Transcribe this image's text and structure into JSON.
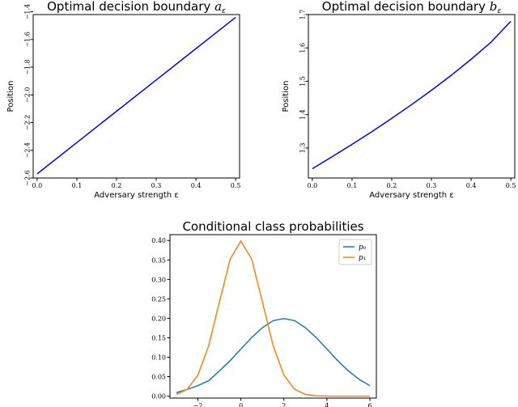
{
  "chart_data": [
    {
      "type": "line",
      "title": "Optimal decision boundary a_ε",
      "title_text": "Optimal decision boundary ",
      "title_symbol": "a",
      "title_sub": "ε",
      "xlabel": "Adversary strength ε",
      "ylabel": "Position",
      "xlim": [
        -0.01,
        0.51
      ],
      "ylim": [
        -2.6,
        -1.42
      ],
      "xticks": [
        0.0,
        0.1,
        0.2,
        0.3,
        0.4,
        0.5
      ],
      "xtick_labels": [
        "0.0",
        "0.1",
        "0.2",
        "0.3",
        "0.4",
        "0.5"
      ],
      "yticks": [
        -2.6,
        -2.4,
        -2.2,
        -2.0,
        -1.8,
        -1.6,
        -1.4
      ],
      "ytick_labels": [
        "−2.6",
        "−2.4",
        "−2.2",
        "−2.0",
        "−1.8",
        "−1.6",
        "−1.4"
      ],
      "grid": false,
      "series": [
        {
          "color": "#0000ff",
          "x": [
            0.0,
            0.1,
            0.2,
            0.3,
            0.4,
            0.5
          ],
          "y": [
            -2.57,
            -2.344,
            -2.118,
            -1.892,
            -1.666,
            -1.44
          ]
        }
      ]
    },
    {
      "type": "line",
      "title": "Optimal decision boundary b_ε",
      "title_text": "Optimal decision boundary ",
      "title_symbol": "b",
      "title_sub": "ε",
      "xlabel": "Adversary strength ε",
      "ylabel": "Position",
      "xlim": [
        -0.01,
        0.51
      ],
      "ylim": [
        1.21,
        1.7
      ],
      "xticks": [
        0.0,
        0.1,
        0.2,
        0.3,
        0.4,
        0.5
      ],
      "xtick_labels": [
        "0.0",
        "0.1",
        "0.2",
        "0.3",
        "0.4",
        "0.5"
      ],
      "yticks": [
        1.3,
        1.4,
        1.5,
        1.6,
        1.7
      ],
      "ytick_labels": [
        "1.3",
        "1.4",
        "1.5",
        "1.6",
        "1.7"
      ],
      "grid": false,
      "series": [
        {
          "color": "#0000ff",
          "x": [
            0.0,
            0.05,
            0.1,
            0.15,
            0.2,
            0.25,
            0.3,
            0.35,
            0.4,
            0.45,
            0.5
          ],
          "y": [
            1.238,
            1.274,
            1.311,
            1.349,
            1.389,
            1.43,
            1.473,
            1.518,
            1.566,
            1.617,
            1.68
          ]
        }
      ]
    },
    {
      "type": "line",
      "title": "Conditional class probabilities",
      "xlabel": "",
      "ylabel": "",
      "xlim": [
        -3.3,
        6.3
      ],
      "ylim": [
        -0.005,
        0.415
      ],
      "xticks": [
        -2,
        0,
        2,
        4,
        6
      ],
      "xtick_labels": [
        "−2",
        "0",
        "2",
        "4",
        "6"
      ],
      "yticks": [
        0.0,
        0.05,
        0.1,
        0.15,
        0.2,
        0.25,
        0.3,
        0.35,
        0.4
      ],
      "ytick_labels": [
        "0.00",
        "0.05",
        "0.10",
        "0.15",
        "0.20",
        "0.25",
        "0.30",
        "0.35",
        "0.40"
      ],
      "grid": false,
      "legend": "top-right",
      "series": [
        {
          "name": "p₀",
          "color": "#1f77b4",
          "x": [
            -3.0,
            -2.5,
            -2.0,
            -1.5,
            -1.0,
            -0.5,
            0.0,
            0.5,
            1.0,
            1.5,
            2.0,
            2.5,
            3.0,
            3.5,
            4.0,
            4.5,
            5.0,
            5.5,
            6.0
          ],
          "y": [
            0.0091,
            0.0175,
            0.027,
            0.0398,
            0.0648,
            0.0913,
            0.121,
            0.1506,
            0.176,
            0.194,
            0.1995,
            0.194,
            0.176,
            0.1506,
            0.121,
            0.0913,
            0.0648,
            0.0431,
            0.027
          ]
        },
        {
          "name": "p₁",
          "color": "#ff7f0e",
          "x": [
            -3.0,
            -2.5,
            -2.0,
            -1.5,
            -1.0,
            -0.5,
            0.0,
            0.5,
            1.0,
            1.5,
            2.0,
            2.5,
            3.0,
            3.5,
            4.0,
            4.5,
            5.0,
            5.5,
            6.0
          ],
          "y": [
            0.0044,
            0.0175,
            0.054,
            0.1295,
            0.242,
            0.3521,
            0.3989,
            0.3521,
            0.242,
            0.1295,
            0.054,
            0.0175,
            0.0044,
            0.0009,
            0.0001,
            0.0,
            0.0,
            0.0,
            0.0
          ]
        }
      ]
    }
  ]
}
